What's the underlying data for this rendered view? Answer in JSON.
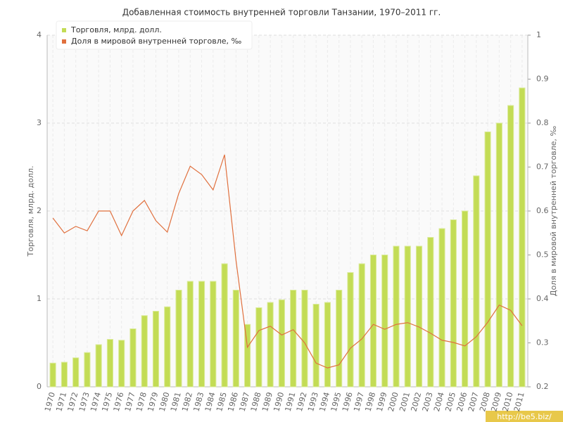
{
  "chart_data": {
    "type": "bar-line",
    "title": "Добавленная стоимость внутренней торговли Танзании, 1970–2011 гг.",
    "ylabel": "Торговля, млрд. долл.",
    "y2label": "Доля в мировой внутренней торговле, ‰",
    "watermark": "http://be5.biz/",
    "legend": "top-left",
    "grid": true,
    "categories": [
      "1970",
      "1971",
      "1972",
      "1973",
      "1974",
      "1975",
      "1976",
      "1977",
      "1978",
      "1979",
      "1980",
      "1981",
      "1982",
      "1983",
      "1984",
      "1985",
      "1986",
      "1987",
      "1988",
      "1989",
      "1990",
      "1991",
      "1992",
      "1993",
      "1994",
      "1995",
      "1996",
      "1997",
      "1998",
      "1999",
      "2000",
      "2001",
      "2002",
      "2003",
      "2004",
      "2005",
      "2006",
      "2007",
      "2008",
      "2009",
      "2010",
      "2011"
    ],
    "series": [
      {
        "name": "Торговля, млрд. долл.",
        "color": "#c3dc55",
        "kind": "bar",
        "values": [
          0.27,
          0.28,
          0.33,
          0.39,
          0.48,
          0.54,
          0.53,
          0.66,
          0.81,
          0.86,
          0.91,
          1.1,
          1.2,
          1.2,
          1.2,
          1.4,
          1.1,
          0.71,
          0.9,
          0.96,
          0.99,
          1.1,
          1.1,
          0.94,
          0.96,
          1.1,
          1.3,
          1.4,
          1.5,
          1.5,
          1.6,
          1.6,
          1.6,
          1.7,
          1.8,
          1.9,
          2.0,
          2.4,
          2.9,
          3.0,
          3.2,
          3.4
        ]
      },
      {
        "name": "Доля в мировой внутренней торговле, ‰",
        "color": "#e0703e",
        "kind": "line",
        "axis": "y2",
        "values": [
          0.584,
          0.55,
          0.565,
          0.555,
          0.6,
          0.6,
          0.544,
          0.6,
          0.624,
          0.578,
          0.552,
          0.64,
          0.702,
          0.683,
          0.648,
          0.728,
          0.488,
          0.29,
          0.328,
          0.338,
          0.318,
          0.33,
          0.3,
          0.254,
          0.243,
          0.25,
          0.288,
          0.309,
          0.342,
          0.331,
          0.342,
          0.346,
          0.336,
          0.322,
          0.306,
          0.301,
          0.293,
          0.314,
          0.347,
          0.386,
          0.374,
          0.339
        ]
      }
    ],
    "ylim": [
      0,
      4
    ],
    "yticks": [
      0,
      1,
      2,
      3,
      4
    ],
    "y2lim": [
      0.2,
      1
    ],
    "y2ticks": [
      0.2,
      0.3,
      0.4,
      0.5,
      0.6,
      0.7,
      0.8,
      0.9,
      1
    ]
  }
}
